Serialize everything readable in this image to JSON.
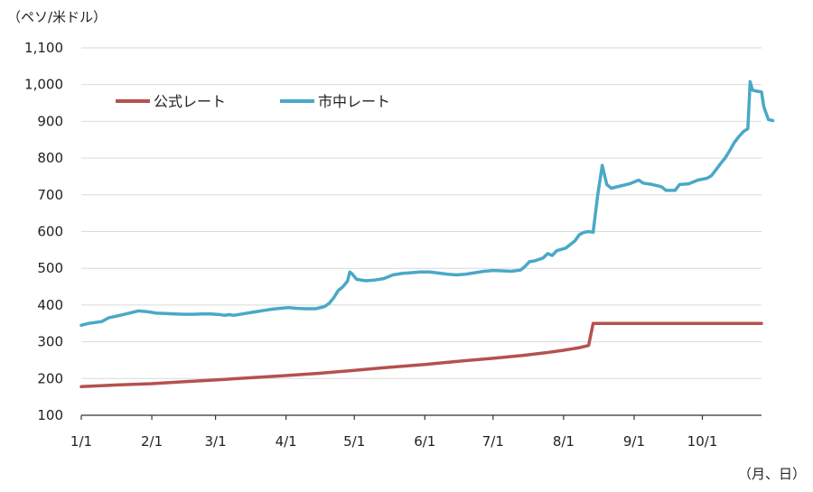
{
  "chart_data": {
    "type": "line",
    "y_unit_label": "（ペソ/米ドル）",
    "x_unit_label": "（月、日）",
    "ylim": [
      100,
      1100
    ],
    "yticks": [
      100,
      200,
      300,
      400,
      500,
      600,
      700,
      800,
      900,
      1000,
      1100
    ],
    "ytick_labels": [
      "100",
      "200",
      "300",
      "400",
      "500",
      "600",
      "700",
      "800",
      "900",
      "1,000",
      "1,100"
    ],
    "xlim": [
      1,
      300
    ],
    "xticks": [
      {
        "label": "1/1",
        "x": 1
      },
      {
        "label": "2/1",
        "x": 32
      },
      {
        "label": "3/1",
        "x": 60
      },
      {
        "label": "4/1",
        "x": 91
      },
      {
        "label": "5/1",
        "x": 121
      },
      {
        "label": "6/1",
        "x": 152
      },
      {
        "label": "7/1",
        "x": 182
      },
      {
        "label": "8/1",
        "x": 213
      },
      {
        "label": "9/1",
        "x": 244
      },
      {
        "label": "10/1",
        "x": 274
      }
    ],
    "grid": true,
    "legend_position": "top-left",
    "series": [
      {
        "name": "公式レート",
        "color": "#b5514e",
        "points": [
          [
            1,
            178
          ],
          [
            15,
            182
          ],
          [
            32,
            186
          ],
          [
            45,
            191
          ],
          [
            60,
            196
          ],
          [
            75,
            202
          ],
          [
            91,
            208
          ],
          [
            105,
            214
          ],
          [
            121,
            222
          ],
          [
            135,
            230
          ],
          [
            152,
            238
          ],
          [
            165,
            246
          ],
          [
            182,
            255
          ],
          [
            195,
            263
          ],
          [
            205,
            270
          ],
          [
            213,
            277
          ],
          [
            220,
            284
          ],
          [
            224,
            290
          ],
          [
            226,
            350
          ],
          [
            240,
            350
          ],
          [
            260,
            350
          ],
          [
            280,
            350
          ],
          [
            300,
            350
          ]
        ]
      },
      {
        "name": "市中レート",
        "color": "#4aa8c7",
        "points": [
          [
            1,
            345
          ],
          [
            4,
            350
          ],
          [
            10,
            355
          ],
          [
            13,
            365
          ],
          [
            18,
            372
          ],
          [
            22,
            378
          ],
          [
            26,
            384
          ],
          [
            30,
            382
          ],
          [
            34,
            378
          ],
          [
            38,
            377
          ],
          [
            42,
            376
          ],
          [
            46,
            375
          ],
          [
            50,
            375
          ],
          [
            54,
            376
          ],
          [
            58,
            376
          ],
          [
            62,
            374
          ],
          [
            64,
            372
          ],
          [
            66,
            374
          ],
          [
            68,
            372
          ],
          [
            72,
            376
          ],
          [
            76,
            380
          ],
          [
            80,
            384
          ],
          [
            84,
            388
          ],
          [
            88,
            391
          ],
          [
            92,
            393
          ],
          [
            96,
            391
          ],
          [
            100,
            390
          ],
          [
            104,
            390
          ],
          [
            108,
            396
          ],
          [
            110,
            405
          ],
          [
            112,
            420
          ],
          [
            114,
            440
          ],
          [
            116,
            450
          ],
          [
            118,
            465
          ],
          [
            119,
            490
          ],
          [
            120,
            485
          ],
          [
            122,
            470
          ],
          [
            126,
            466
          ],
          [
            130,
            468
          ],
          [
            134,
            472
          ],
          [
            138,
            482
          ],
          [
            142,
            486
          ],
          [
            146,
            488
          ],
          [
            150,
            490
          ],
          [
            154,
            490
          ],
          [
            158,
            487
          ],
          [
            162,
            484
          ],
          [
            166,
            482
          ],
          [
            170,
            484
          ],
          [
            174,
            488
          ],
          [
            178,
            492
          ],
          [
            182,
            494
          ],
          [
            186,
            493
          ],
          [
            190,
            492
          ],
          [
            194,
            495
          ],
          [
            196,
            505
          ],
          [
            198,
            518
          ],
          [
            200,
            520
          ],
          [
            204,
            528
          ],
          [
            206,
            540
          ],
          [
            208,
            535
          ],
          [
            210,
            548
          ],
          [
            214,
            555
          ],
          [
            218,
            575
          ],
          [
            220,
            592
          ],
          [
            222,
            598
          ],
          [
            224,
            600
          ],
          [
            226,
            598
          ],
          [
            228,
            700
          ],
          [
            230,
            780
          ],
          [
            232,
            728
          ],
          [
            234,
            718
          ],
          [
            238,
            724
          ],
          [
            242,
            730
          ],
          [
            246,
            740
          ],
          [
            248,
            732
          ],
          [
            252,
            728
          ],
          [
            256,
            722
          ],
          [
            258,
            712
          ],
          [
            262,
            712
          ],
          [
            264,
            728
          ],
          [
            268,
            730
          ],
          [
            272,
            740
          ],
          [
            276,
            745
          ],
          [
            278,
            752
          ],
          [
            280,
            768
          ],
          [
            282,
            785
          ],
          [
            284,
            800
          ],
          [
            286,
            820
          ],
          [
            288,
            842
          ],
          [
            290,
            858
          ],
          [
            292,
            872
          ],
          [
            294,
            880
          ],
          [
            295,
            1008
          ],
          [
            296,
            985
          ],
          [
            298,
            982
          ],
          [
            300,
            980
          ],
          [
            301,
            940
          ],
          [
            303,
            905
          ],
          [
            305,
            902
          ]
        ]
      }
    ]
  }
}
